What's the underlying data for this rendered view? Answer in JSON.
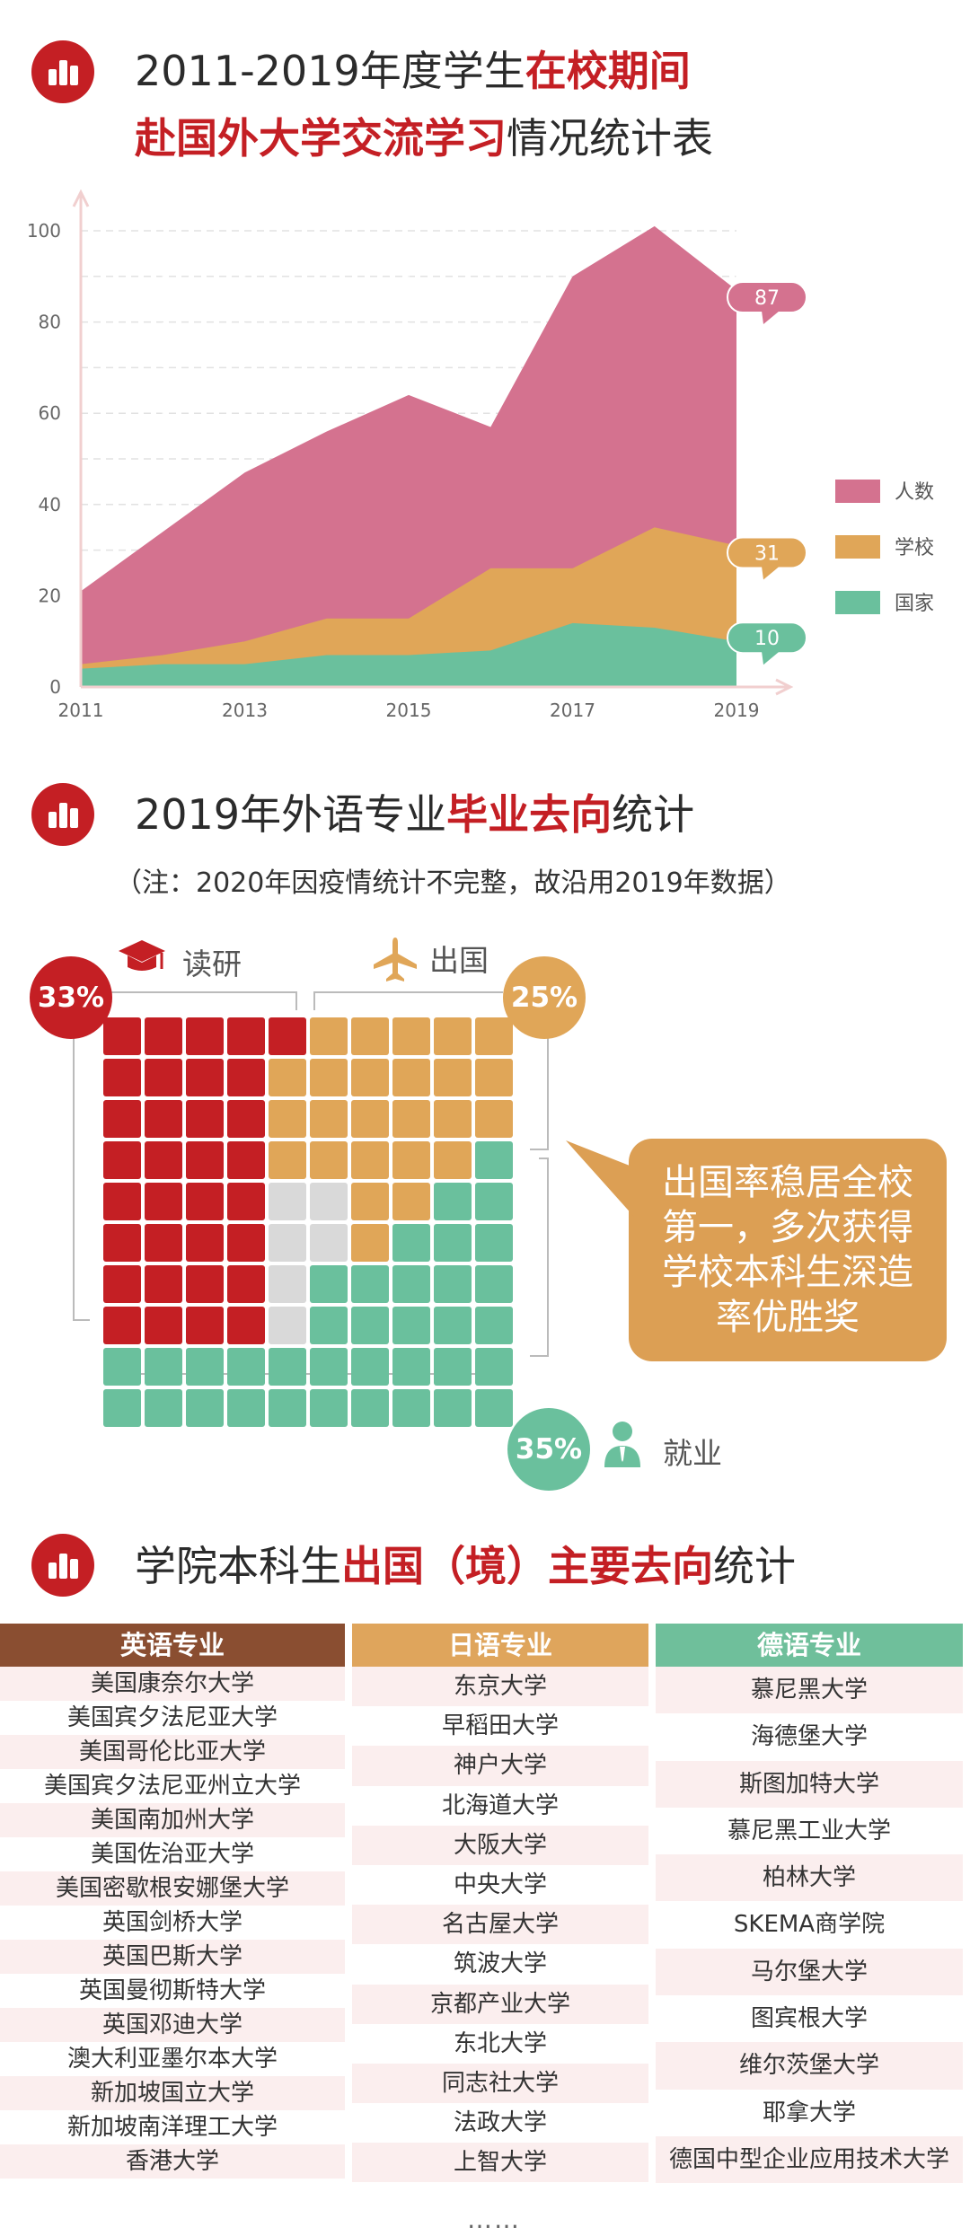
{
  "section1": {
    "title_a": "2011-2019年度学生",
    "title_b": "在校期间",
    "title_c": "赴国外大学交流学习",
    "title_d": "情况统计表"
  },
  "chart_data": {
    "type": "area",
    "x": [
      2011,
      2012,
      2013,
      2014,
      2015,
      2016,
      2017,
      2018,
      2019
    ],
    "xticks": [
      "2011",
      "2013",
      "2015",
      "2017",
      "2019"
    ],
    "yticks": [
      "0",
      "20",
      "40",
      "60",
      "80",
      "100"
    ],
    "ylim": [
      0,
      100
    ],
    "series": [
      {
        "name": "人数",
        "color": "#d4728f",
        "values": [
          21,
          34,
          47,
          56,
          64,
          57,
          90,
          101,
          87
        ]
      },
      {
        "name": "学校",
        "color": "#e0a658",
        "values": [
          5,
          7,
          10,
          15,
          15,
          26,
          26,
          35,
          31
        ]
      },
      {
        "name": "国家",
        "color": "#6ac09d",
        "values": [
          4,
          5,
          5,
          7,
          7,
          8,
          14,
          13,
          10
        ]
      }
    ],
    "end_labels": [
      "87",
      "31",
      "10"
    ],
    "legend": "right"
  },
  "section2": {
    "title_a": "2019年外语专业",
    "title_b": "毕业去向",
    "title_c": "统计",
    "note": "（注：2020年因疫情统计不完整，故沿用2019年数据）",
    "grad": {
      "label": "读研",
      "pct": "33%",
      "color": "#c41f24",
      "icon": "graduation-cap-icon"
    },
    "abroad": {
      "label": "出国",
      "pct": "25%",
      "color": "#e0a658",
      "icon": "airplane-icon"
    },
    "job": {
      "label": "就业",
      "pct": "35%",
      "color": "#6ac09d",
      "icon": "person-icon"
    },
    "other_color": "#d9d9d9",
    "callout": "出国率稳居全校第一，多次获得学校本科生深造率优胜奖"
  },
  "section3": {
    "title_a": "学院本科生",
    "title_b": "出国（境）主要去向",
    "title_c": "统计",
    "columns": [
      {
        "header": "英语专业",
        "color": "#8a4e31",
        "items": [
          "美国康奈尔大学",
          "美国宾夕法尼亚大学",
          "美国哥伦比亚大学",
          "美国宾夕法尼亚州立大学",
          "美国南加州大学",
          "美国佐治亚大学",
          "美国密歇根安娜堡大学",
          "英国剑桥大学",
          "英国巴斯大学",
          "英国曼彻斯特大学",
          "英国邓迪大学",
          "澳大利亚墨尔本大学",
          "新加坡国立大学",
          "新加坡南洋理工大学",
          "香港大学"
        ]
      },
      {
        "header": "日语专业",
        "color": "#dfa55c",
        "items": [
          "东京大学",
          "早稻田大学",
          "神户大学",
          "北海道大学",
          "大阪大学",
          "中央大学",
          "名古屋大学",
          "筑波大学",
          "京都产业大学",
          "东北大学",
          "同志社大学",
          "法政大学",
          "上智大学"
        ]
      },
      {
        "header": "德语专业",
        "color": "#6fbf9b",
        "items": [
          "慕尼黑大学",
          "海德堡大学",
          "斯图加特大学",
          "慕尼黑工业大学",
          "柏林大学",
          "SKEMA商学院",
          "马尔堡大学",
          "图宾根大学",
          "维尔茨堡大学",
          "耶拿大学",
          "德国中型企业应用技术大学"
        ]
      }
    ],
    "ellipsis": "……"
  }
}
